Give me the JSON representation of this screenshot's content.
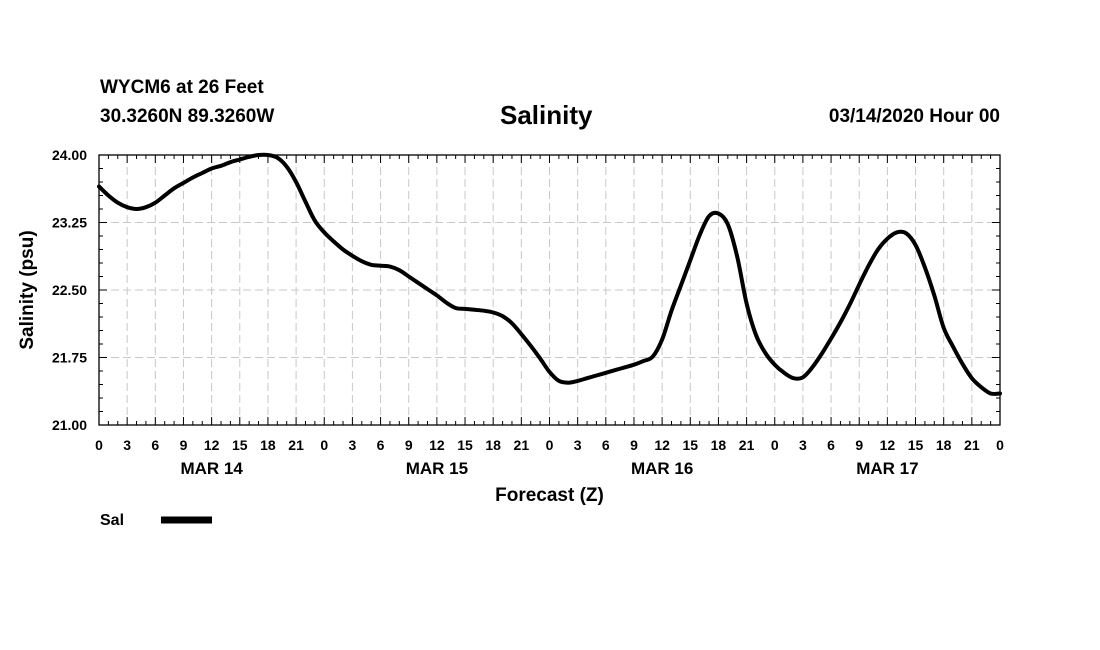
{
  "header": {
    "station": "WYCM6 at 26 Feet",
    "coordinates": "30.3260N 89.3260W",
    "title": "Salinity",
    "timestamp": "03/14/2020 Hour 00"
  },
  "chart_data": {
    "type": "line",
    "title": "Salinity",
    "xlabel": "Forecast (Z)",
    "ylabel": "Salinity (psu)",
    "ylim": [
      21.0,
      24.0
    ],
    "yticks": [
      "21.00",
      "21.75",
      "22.50",
      "23.25",
      "24.00"
    ],
    "xlim_hours": [
      0,
      96
    ],
    "xtick_step_hours": 3,
    "xtick_labels": [
      "0",
      "3",
      "6",
      "9",
      "12",
      "15",
      "18",
      "21",
      "0",
      "3",
      "6",
      "9",
      "12",
      "15",
      "18",
      "21",
      "0",
      "3",
      "6",
      "9",
      "12",
      "15",
      "18",
      "21",
      "0",
      "3",
      "6",
      "9",
      "12",
      "15",
      "18",
      "21",
      "0"
    ],
    "date_labels": [
      "MAR 14",
      "MAR 15",
      "MAR 16",
      "MAR 17"
    ],
    "grid": true,
    "legend_position": "bottom-left",
    "series": [
      {
        "name": "Sal",
        "color": "#000000",
        "x": [
          0,
          1,
          2,
          3,
          4,
          5,
          6,
          7,
          8,
          9,
          10,
          11,
          12,
          13,
          14,
          15,
          16,
          17,
          18,
          19,
          20,
          21,
          22,
          23,
          24,
          25,
          26,
          27,
          28,
          29,
          30,
          31,
          32,
          33,
          34,
          35,
          36,
          37,
          38,
          39,
          40,
          41,
          42,
          43,
          44,
          45,
          46,
          47,
          48,
          49,
          50,
          51,
          52,
          53,
          54,
          55,
          56,
          57,
          58,
          59,
          60,
          61,
          62,
          63,
          64,
          65,
          66,
          67,
          68,
          69,
          70,
          71,
          72,
          73,
          74,
          75,
          76,
          77,
          78,
          79,
          80,
          81,
          82,
          83,
          84,
          85,
          86,
          87,
          88,
          89,
          90,
          91,
          92,
          93,
          94,
          95,
          96
        ],
        "values": [
          23.65,
          23.55,
          23.47,
          23.42,
          23.4,
          23.42,
          23.47,
          23.55,
          23.63,
          23.69,
          23.75,
          23.8,
          23.85,
          23.88,
          23.92,
          23.95,
          23.98,
          24.0,
          24.0,
          23.97,
          23.87,
          23.7,
          23.48,
          23.27,
          23.14,
          23.04,
          22.95,
          22.88,
          22.82,
          22.78,
          22.77,
          22.76,
          22.72,
          22.65,
          22.58,
          22.51,
          22.44,
          22.36,
          22.3,
          22.29,
          22.28,
          22.27,
          22.25,
          22.21,
          22.13,
          22.01,
          21.88,
          21.74,
          21.59,
          21.49,
          21.47,
          21.49,
          21.52,
          21.55,
          21.58,
          21.61,
          21.64,
          21.67,
          21.71,
          21.76,
          21.95,
          22.27,
          22.55,
          22.83,
          23.11,
          23.32,
          23.35,
          23.23,
          22.87,
          22.35,
          22.0,
          21.8,
          21.67,
          21.58,
          21.52,
          21.53,
          21.64,
          21.79,
          21.96,
          22.14,
          22.34,
          22.56,
          22.77,
          22.95,
          23.07,
          23.14,
          23.13,
          23.0,
          22.75,
          22.44,
          22.08,
          21.87,
          21.68,
          21.52,
          21.42,
          21.35,
          21.35
        ]
      }
    ]
  }
}
